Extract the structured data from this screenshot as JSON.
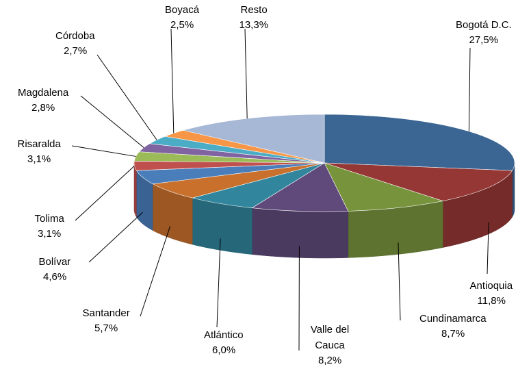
{
  "chart_data": {
    "type": "pie",
    "categories": [
      "Bogotá D.C.",
      "Antioquia",
      "Cundinamarca",
      "Valle del Cauca",
      "Atlántico",
      "Santander",
      "Bolívar",
      "Tolima",
      "Risaralda",
      "Magdalena",
      "Córdoba",
      "Boyacá",
      "Resto"
    ],
    "values": [
      27.5,
      11.8,
      8.7,
      8.2,
      6.0,
      5.7,
      4.6,
      3.1,
      3.1,
      2.8,
      2.7,
      2.5,
      13.3
    ],
    "value_labels": [
      "27,5%",
      "11,8%",
      "8,7%",
      "8,2%",
      "6,0%",
      "5,7%",
      "4,6%",
      "3,1%",
      "3,1%",
      "2,8%",
      "2,7%",
      "2,5%",
      "13,3%"
    ],
    "colors": [
      "#3b6593",
      "#953735",
      "#77933c",
      "#604a7b",
      "#31859c",
      "#c8702c",
      "#4a7ebb",
      "#c0504d",
      "#9bbb59",
      "#8064a2",
      "#4bacc6",
      "#f79646",
      "#a7b8d6"
    ]
  }
}
